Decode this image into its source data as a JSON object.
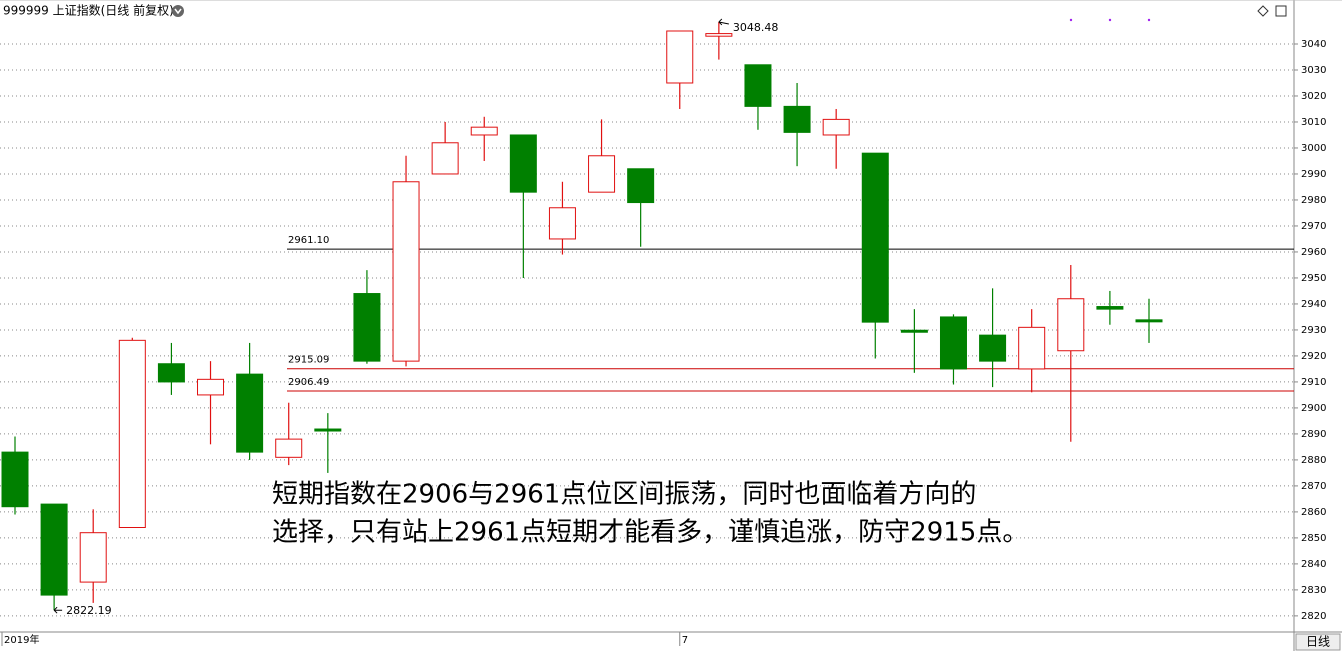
{
  "chart_data": {
    "type": "candlestick",
    "title": "999999 上证指数(日线 前复权)",
    "period_tab": "日线",
    "categories": [
      "2019年",
      null,
      null,
      null,
      null,
      null,
      null,
      null,
      null,
      null,
      null,
      null,
      null,
      null,
      null,
      null,
      null,
      "7",
      null,
      null,
      null,
      null,
      null,
      null,
      null,
      null,
      null,
      null,
      null,
      null
    ],
    "open": [
      2883,
      2863,
      2833,
      2854,
      2917,
      2905,
      2913,
      2881,
      2891.5,
      2944,
      2918,
      2990,
      3005,
      3005,
      2965,
      2983,
      2992,
      3025,
      3043,
      3032,
      3016,
      3005,
      2998,
      2929.5,
      2935,
      2928,
      2915,
      2922,
      2939,
      2933.5
    ],
    "high": [
      2889,
      2863,
      2861,
      2927,
      2925,
      2918,
      2925,
      2902,
      2898,
      2953,
      2997,
      3010,
      3012,
      3005,
      2987,
      3011,
      2992,
      3045,
      3048.48,
      3032,
      3025,
      3015,
      2998,
      2938,
      2936,
      2946,
      2938,
      2955,
      2945,
      2942
    ],
    "low": [
      2859,
      2822.19,
      2825,
      2854,
      2905,
      2886,
      2880,
      2878,
      2875,
      2917,
      2916,
      2990,
      2995,
      2950,
      2959,
      2983,
      2962,
      3015,
      3034,
      3007,
      2993,
      2992,
      2919,
      2913.5,
      2909,
      2908,
      2906,
      2887,
      2932,
      2925
    ],
    "close": [
      2862,
      2828,
      2852,
      2926,
      2910,
      2911,
      2883,
      2888,
      2891,
      2918,
      2987,
      3002,
      3008,
      2983,
      2977,
      2997,
      2979,
      3045,
      3044,
      3016,
      3006,
      3011,
      2933,
      2929,
      2915,
      2918,
      2931,
      2942,
      2938,
      2933
    ],
    "up_color": "#e01010",
    "down_color": "#008000",
    "low_label_index": 1,
    "high_label_index": 18,
    "levels": [
      {
        "value": 2961.1,
        "label": "2961.10",
        "color": "#000000"
      },
      {
        "value": 2915.09,
        "label": "2915.09",
        "color": "#cc0000"
      },
      {
        "value": 2906.49,
        "label": "2906.49",
        "color": "#cc0000"
      }
    ],
    "annotation_lines": [
      "短期指数在2906与2961点位区间振荡，同时也面临着方向的",
      "选择，只有站上2961点短期才能看多，谨慎追涨，防守2915点。"
    ],
    "ylim": [
      2813.8,
      3055
    ],
    "yticks": [
      2820,
      2830,
      2840,
      2850,
      2860,
      2870,
      2880,
      2890,
      2900,
      2910,
      2920,
      2930,
      2940,
      2950,
      2960,
      2970,
      2980,
      2990,
      3000,
      3010,
      3020,
      3030,
      3040
    ],
    "grid": true
  }
}
